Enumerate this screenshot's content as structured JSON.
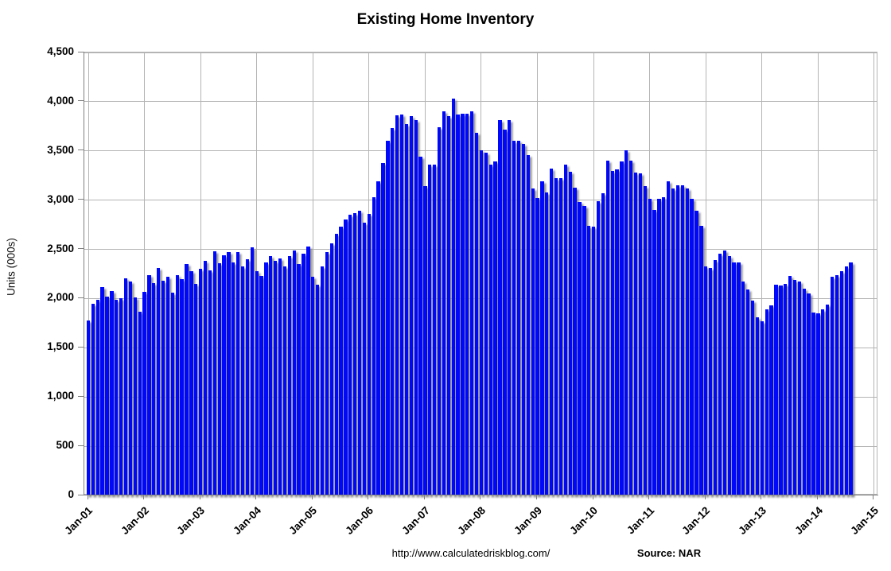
{
  "title": "Existing Home Inventory",
  "y_axis": {
    "title": "Units (000s)",
    "tick_labels": [
      "4,500",
      "4,000",
      "3,500",
      "3,000",
      "2,500",
      "2,000",
      "1,500",
      "1,000",
      "500",
      "0"
    ],
    "tick_values": [
      4500,
      4000,
      3500,
      3000,
      2500,
      2000,
      1500,
      1000,
      500,
      0
    ]
  },
  "x_axis": {
    "tick_labels": [
      "Jan-01",
      "Jan-02",
      "Jan-03",
      "Jan-04",
      "Jan-05",
      "Jan-06",
      "Jan-07",
      "Jan-08",
      "Jan-09",
      "Jan-10",
      "Jan-11",
      "Jan-12",
      "Jan-13",
      "Jan-14",
      "Jan-15"
    ]
  },
  "footer": {
    "url": "http://www.calculatedriskblog.com/",
    "source": "Source: NAR"
  },
  "chart_data": {
    "type": "bar",
    "title": "Existing Home Inventory",
    "xlabel": "",
    "ylabel": "Units (000s)",
    "ylim": [
      0,
      4500
    ],
    "y_step": 500,
    "grid": true,
    "bar_color": "#0008fb",
    "unit": "thousands of units",
    "start_month": "2001-01",
    "end_month": "2014-08",
    "x_year_ticks": [
      "Jan-01",
      "Jan-02",
      "Jan-03",
      "Jan-04",
      "Jan-05",
      "Jan-06",
      "Jan-07",
      "Jan-08",
      "Jan-09",
      "Jan-10",
      "Jan-11",
      "Jan-12",
      "Jan-13",
      "Jan-14",
      "Jan-15"
    ],
    "values": [
      1775,
      1950,
      1990,
      2115,
      2020,
      2080,
      1990,
      2000,
      2205,
      2170,
      2010,
      1870,
      2070,
      2240,
      2160,
      2310,
      2180,
      2220,
      2060,
      2240,
      2200,
      2350,
      2280,
      2150,
      2300,
      2380,
      2290,
      2480,
      2360,
      2440,
      2470,
      2370,
      2470,
      2330,
      2400,
      2520,
      2280,
      2230,
      2370,
      2430,
      2380,
      2410,
      2330,
      2430,
      2490,
      2350,
      2460,
      2530,
      2220,
      2140,
      2330,
      2470,
      2560,
      2660,
      2730,
      2800,
      2850,
      2870,
      2890,
      2770,
      2860,
      3030,
      3190,
      3380,
      3600,
      3730,
      3860,
      3870,
      3770,
      3850,
      3810,
      3440,
      3140,
      3360,
      3360,
      3740,
      3900,
      3850,
      4030,
      3870,
      3880,
      3880,
      3900,
      3680,
      3510,
      3480,
      3360,
      3390,
      3810,
      3720,
      3810,
      3600,
      3600,
      3570,
      3460,
      3120,
      3020,
      3190,
      3080,
      3320,
      3220,
      3220,
      3360,
      3290,
      3130,
      2980,
      2940,
      2740,
      2730,
      2990,
      3070,
      3400,
      3300,
      3310,
      3390,
      3510,
      3400,
      3280,
      3270,
      3140,
      3010,
      2900,
      3010,
      3030,
      3190,
      3120,
      3150,
      3150,
      3120,
      3010,
      2890,
      2740,
      2330,
      2310,
      2390,
      2460,
      2490,
      2430,
      2370,
      2370,
      2170,
      2090,
      1980,
      1810,
      1770,
      1890,
      1930,
      2140,
      2130,
      2150,
      2230,
      2190,
      2170,
      2100,
      2050,
      1860,
      1850,
      1890,
      1940,
      2220,
      2240,
      2280,
      2330,
      2370
    ]
  }
}
